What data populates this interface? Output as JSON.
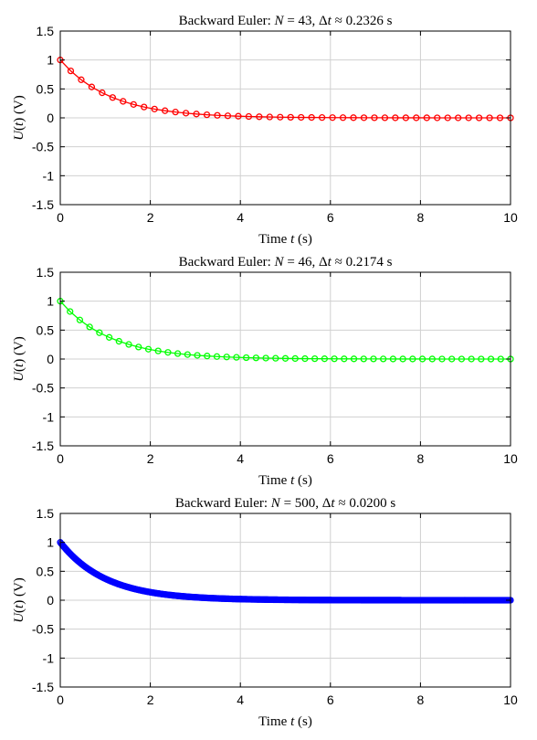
{
  "figure": {
    "background": "#ffffff",
    "grid": true
  },
  "chart_data": [
    {
      "type": "line",
      "title": "Backward Euler: N = 43, Δt ≈ 0.2326 s",
      "title_parts": {
        "prefix": "Backward Euler: ",
        "n_symbol": "N",
        "n_value": " = 43, Δ",
        "dt_symbol": "t",
        "dt_value": " ≈ 0.2326 s"
      },
      "xlabel": "Time t (s)",
      "xlabel_parts": {
        "prefix": "Time ",
        "var": "t",
        "unit": " (s)"
      },
      "ylabel": "U(t) (V)",
      "ylabel_parts": {
        "fn": "U",
        "open": "(",
        "var": "t",
        "close": ") (V)"
      },
      "xlim": [
        0,
        10
      ],
      "ylim": [
        -1.5,
        1.5
      ],
      "xticks": [
        0,
        2,
        4,
        6,
        8,
        10
      ],
      "yticks": [
        -1.5,
        -1,
        -0.5,
        0,
        0.5,
        1,
        1.5
      ],
      "series": [
        {
          "color": "#ff0000",
          "marker": "circle",
          "N": 43,
          "dt": 0.2326,
          "u0": 1,
          "tau": 1
        }
      ]
    },
    {
      "type": "line",
      "title": "Backward Euler: N = 46, Δt ≈ 0.2174 s",
      "title_parts": {
        "prefix": "Backward Euler: ",
        "n_symbol": "N",
        "n_value": " = 46, Δ",
        "dt_symbol": "t",
        "dt_value": " ≈ 0.2174 s"
      },
      "xlabel": "Time t (s)",
      "xlabel_parts": {
        "prefix": "Time ",
        "var": "t",
        "unit": " (s)"
      },
      "ylabel": "U(t) (V)",
      "ylabel_parts": {
        "fn": "U",
        "open": "(",
        "var": "t",
        "close": ") (V)"
      },
      "xlim": [
        0,
        10
      ],
      "ylim": [
        -1.5,
        1.5
      ],
      "xticks": [
        0,
        2,
        4,
        6,
        8,
        10
      ],
      "yticks": [
        -1.5,
        -1,
        -0.5,
        0,
        0.5,
        1,
        1.5
      ],
      "series": [
        {
          "color": "#00ff00",
          "marker": "circle",
          "N": 46,
          "dt": 0.2174,
          "u0": 1,
          "tau": 1
        }
      ]
    },
    {
      "type": "line",
      "title": "Backward Euler: N = 500, Δt ≈ 0.0200 s",
      "title_parts": {
        "prefix": "Backward Euler: ",
        "n_symbol": "N",
        "n_value": " = 500, Δ",
        "dt_symbol": "t",
        "dt_value": " ≈ 0.0200 s"
      },
      "xlabel": "Time t (s)",
      "xlabel_parts": {
        "prefix": "Time ",
        "var": "t",
        "unit": " (s)"
      },
      "ylabel": "U(t) (V)",
      "ylabel_parts": {
        "fn": "U",
        "open": "(",
        "var": "t",
        "close": ") (V)"
      },
      "xlim": [
        0,
        10
      ],
      "ylim": [
        -1.5,
        1.5
      ],
      "xticks": [
        0,
        2,
        4,
        6,
        8,
        10
      ],
      "yticks": [
        -1.5,
        -1,
        -0.5,
        0,
        0.5,
        1,
        1.5
      ],
      "series": [
        {
          "color": "#0000ff",
          "marker": "circle",
          "N": 500,
          "dt": 0.02,
          "u0": 1,
          "tau": 1
        }
      ]
    }
  ]
}
